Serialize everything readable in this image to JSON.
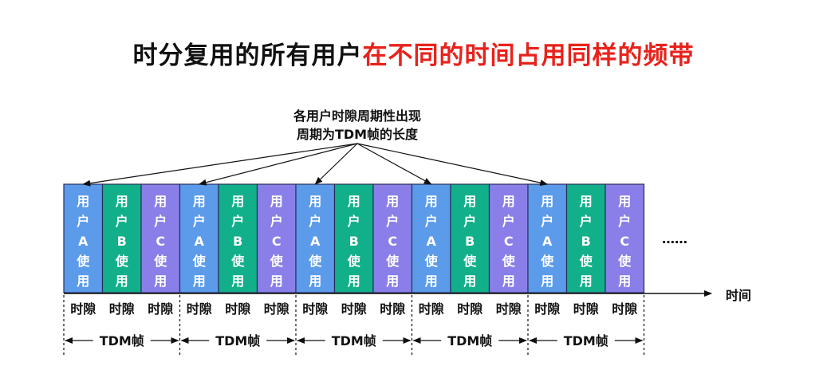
{
  "title": {
    "black": "时分复用的所有用户",
    "red": "在不同的时间占用同样的频带"
  },
  "note": {
    "line1": "各用户时隙周期性出现",
    "line2": "周期为TDM帧的长度"
  },
  "slot_text": {
    "A": [
      "用",
      "户",
      "A",
      "使",
      "用"
    ],
    "B": [
      "用",
      "户",
      "B",
      "使",
      "用"
    ],
    "C": [
      "用",
      "户",
      "C",
      "使",
      "用"
    ]
  },
  "colors": {
    "A": "#5b9bea",
    "B": "#12b08a",
    "C": "#8a7fe8",
    "title_red": "#e8221b"
  },
  "frame_count": 5,
  "slot_label": "时隙",
  "frame_label": "TDM帧",
  "ellipsis": "……",
  "axis_label": "时间"
}
